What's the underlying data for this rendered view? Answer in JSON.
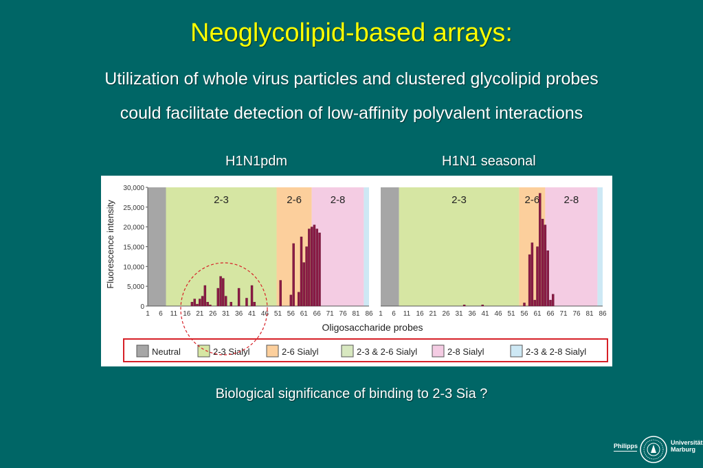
{
  "slide": {
    "title": "Neoglycolipid-based arrays:",
    "subtitle_line1": "Utilization of whole virus particles and clustered glycolipid probes",
    "subtitle_line2": "could facilitate detection of low-affinity polyvalent interactions",
    "panel_left_title": "H1N1pdm",
    "panel_right_title": "H1N1 seasonal",
    "bottom_question": "Biological significance of binding to 2-3 Sia ?"
  },
  "logo": {
    "left_text": "Philipps",
    "right_text_line1": "Universität",
    "right_text_line2": "Marburg"
  },
  "colors": {
    "background": "#006666",
    "title": "#ffff00",
    "bar": "#8b1a45",
    "neutral": "#a6a6a6",
    "sialyl_2_3": "#d6e6a3",
    "sialyl_2_6": "#fccf9c",
    "sialyl_2_3_2_6": "#d8e8c0",
    "sialyl_2_8": "#f4cce3",
    "sialyl_2_3_2_8": "#cde8f4",
    "legend_border": "#d61f26",
    "annotation_circle": "#d61f26"
  },
  "chart_data": [
    {
      "type": "bar",
      "panel": "H1N1pdm",
      "ylabel": "Fluorescence intensity",
      "xlabel": "Oligosaccharide probes",
      "ylim": [
        0,
        30000
      ],
      "yticks": [
        "0",
        "5,000",
        "10,000",
        "15,000",
        "20,000",
        "25,000",
        "30,000"
      ],
      "xlim": [
        1,
        86
      ],
      "xticks": [
        1,
        6,
        11,
        16,
        21,
        26,
        31,
        36,
        41,
        46,
        51,
        56,
        61,
        66,
        71,
        76,
        81,
        86
      ],
      "regions": [
        {
          "label": "",
          "type": "neutral",
          "from": 1,
          "to": 8
        },
        {
          "label": "2-3",
          "type": "sialyl_2_3",
          "from": 8,
          "to": 50.5
        },
        {
          "label": "2-6",
          "type": "sialyl_2_6",
          "from": 50.5,
          "to": 64
        },
        {
          "label": "2-8",
          "type": "sialyl_2_8",
          "from": 64,
          "to": 84
        },
        {
          "label": "",
          "type": "sialyl_2_3_2_8",
          "from": 84,
          "to": 86
        }
      ],
      "x": [
        18,
        19,
        20,
        21,
        22,
        23,
        24,
        25,
        28,
        29,
        30,
        31,
        33,
        36,
        39,
        41,
        42,
        52,
        56,
        57,
        59,
        60,
        61,
        62,
        63,
        64,
        65,
        66,
        67
      ],
      "values": [
        1000,
        1800,
        500,
        1800,
        2500,
        5200,
        1000,
        300,
        4500,
        7500,
        7000,
        2500,
        1000,
        4500,
        2000,
        5200,
        1000,
        6500,
        2800,
        15800,
        3500,
        17500,
        11000,
        15000,
        19500,
        20000,
        20500,
        19500,
        18500
      ]
    },
    {
      "type": "bar",
      "panel": "H1N1 seasonal",
      "ylim": [
        0,
        30000
      ],
      "xlim": [
        1,
        86
      ],
      "xticks": [
        1,
        6,
        11,
        16,
        21,
        26,
        31,
        36,
        41,
        46,
        51,
        56,
        61,
        66,
        71,
        76,
        81,
        86
      ],
      "regions": [
        {
          "label": "",
          "type": "neutral",
          "from": 1,
          "to": 8
        },
        {
          "label": "2-3",
          "type": "sialyl_2_3",
          "from": 8,
          "to": 54
        },
        {
          "label": "2-6",
          "type": "sialyl_2_6",
          "from": 54,
          "to": 64
        },
        {
          "label": "2-8",
          "type": "sialyl_2_8",
          "from": 64,
          "to": 84
        },
        {
          "label": "",
          "type": "sialyl_2_3_2_8",
          "from": 84,
          "to": 86
        }
      ],
      "x": [
        33,
        40,
        56,
        58,
        59,
        60,
        61,
        62,
        63,
        64,
        65,
        66,
        67
      ],
      "values": [
        300,
        300,
        800,
        13000,
        16000,
        1500,
        15000,
        28500,
        22000,
        20500,
        14000,
        1500,
        3000
      ]
    }
  ],
  "legend": [
    {
      "label": "Neutral",
      "color_key": "neutral"
    },
    {
      "label": "2-3 Sialyl",
      "color_key": "sialyl_2_3"
    },
    {
      "label": "2-6 Sialyl",
      "color_key": "sialyl_2_6"
    },
    {
      "label": "2-3 & 2-6 Sialyl",
      "color_key": "sialyl_2_3_2_6"
    },
    {
      "label": "2-8 Sialyl",
      "color_key": "sialyl_2_8"
    },
    {
      "label": "2-3 & 2-8 Sialyl",
      "color_key": "sialyl_2_3_2_8"
    }
  ]
}
